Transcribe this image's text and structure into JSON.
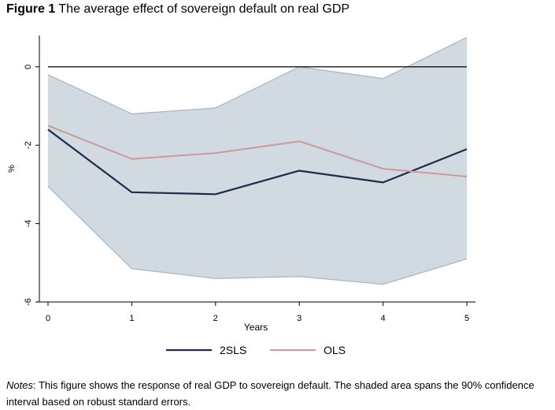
{
  "figure": {
    "label": "Figure 1",
    "title": "The average effect of sovereign default on real GDP"
  },
  "notes": {
    "label": "Notes",
    "text": ": This figure shows the response of real GDP to sovereign default. The shaded area spans the 90% confidence interval based on robust standard errors."
  },
  "chart_data": {
    "type": "line",
    "title": "The average effect of sovereign default on real GDP",
    "xlabel": "Years",
    "ylabel": "%",
    "x": [
      0,
      1,
      2,
      3,
      4,
      5
    ],
    "xlim": [
      0,
      5
    ],
    "ylim": [
      -6,
      0.8
    ],
    "xticks": [
      "0",
      "1",
      "2",
      "3",
      "4",
      "5"
    ],
    "yticks": [
      {
        "value": 0,
        "label": "0"
      },
      {
        "value": -2,
        "label": "-2"
      },
      {
        "value": -4,
        "label": "-4"
      },
      {
        "value": -6,
        "label": "-6"
      }
    ],
    "reference_line": 0,
    "grid": false,
    "legend_position": "bottom",
    "band": {
      "lower": [
        -3.05,
        -5.15,
        -5.4,
        -5.35,
        -5.55,
        -4.9
      ],
      "upper": [
        -0.2,
        -1.2,
        -1.05,
        0.0,
        -0.3,
        0.75
      ],
      "color": "#d1dae1",
      "edge_color": "#a8b9c6"
    },
    "series": [
      {
        "name": "2SLS",
        "values": [
          -1.6,
          -3.2,
          -3.25,
          -2.65,
          -2.95,
          -2.1
        ],
        "color": "#1c2b4a"
      },
      {
        "name": "OLS",
        "values": [
          -1.5,
          -2.35,
          -2.2,
          -1.9,
          -2.6,
          -2.8
        ],
        "color": "#c99a9c"
      }
    ]
  }
}
